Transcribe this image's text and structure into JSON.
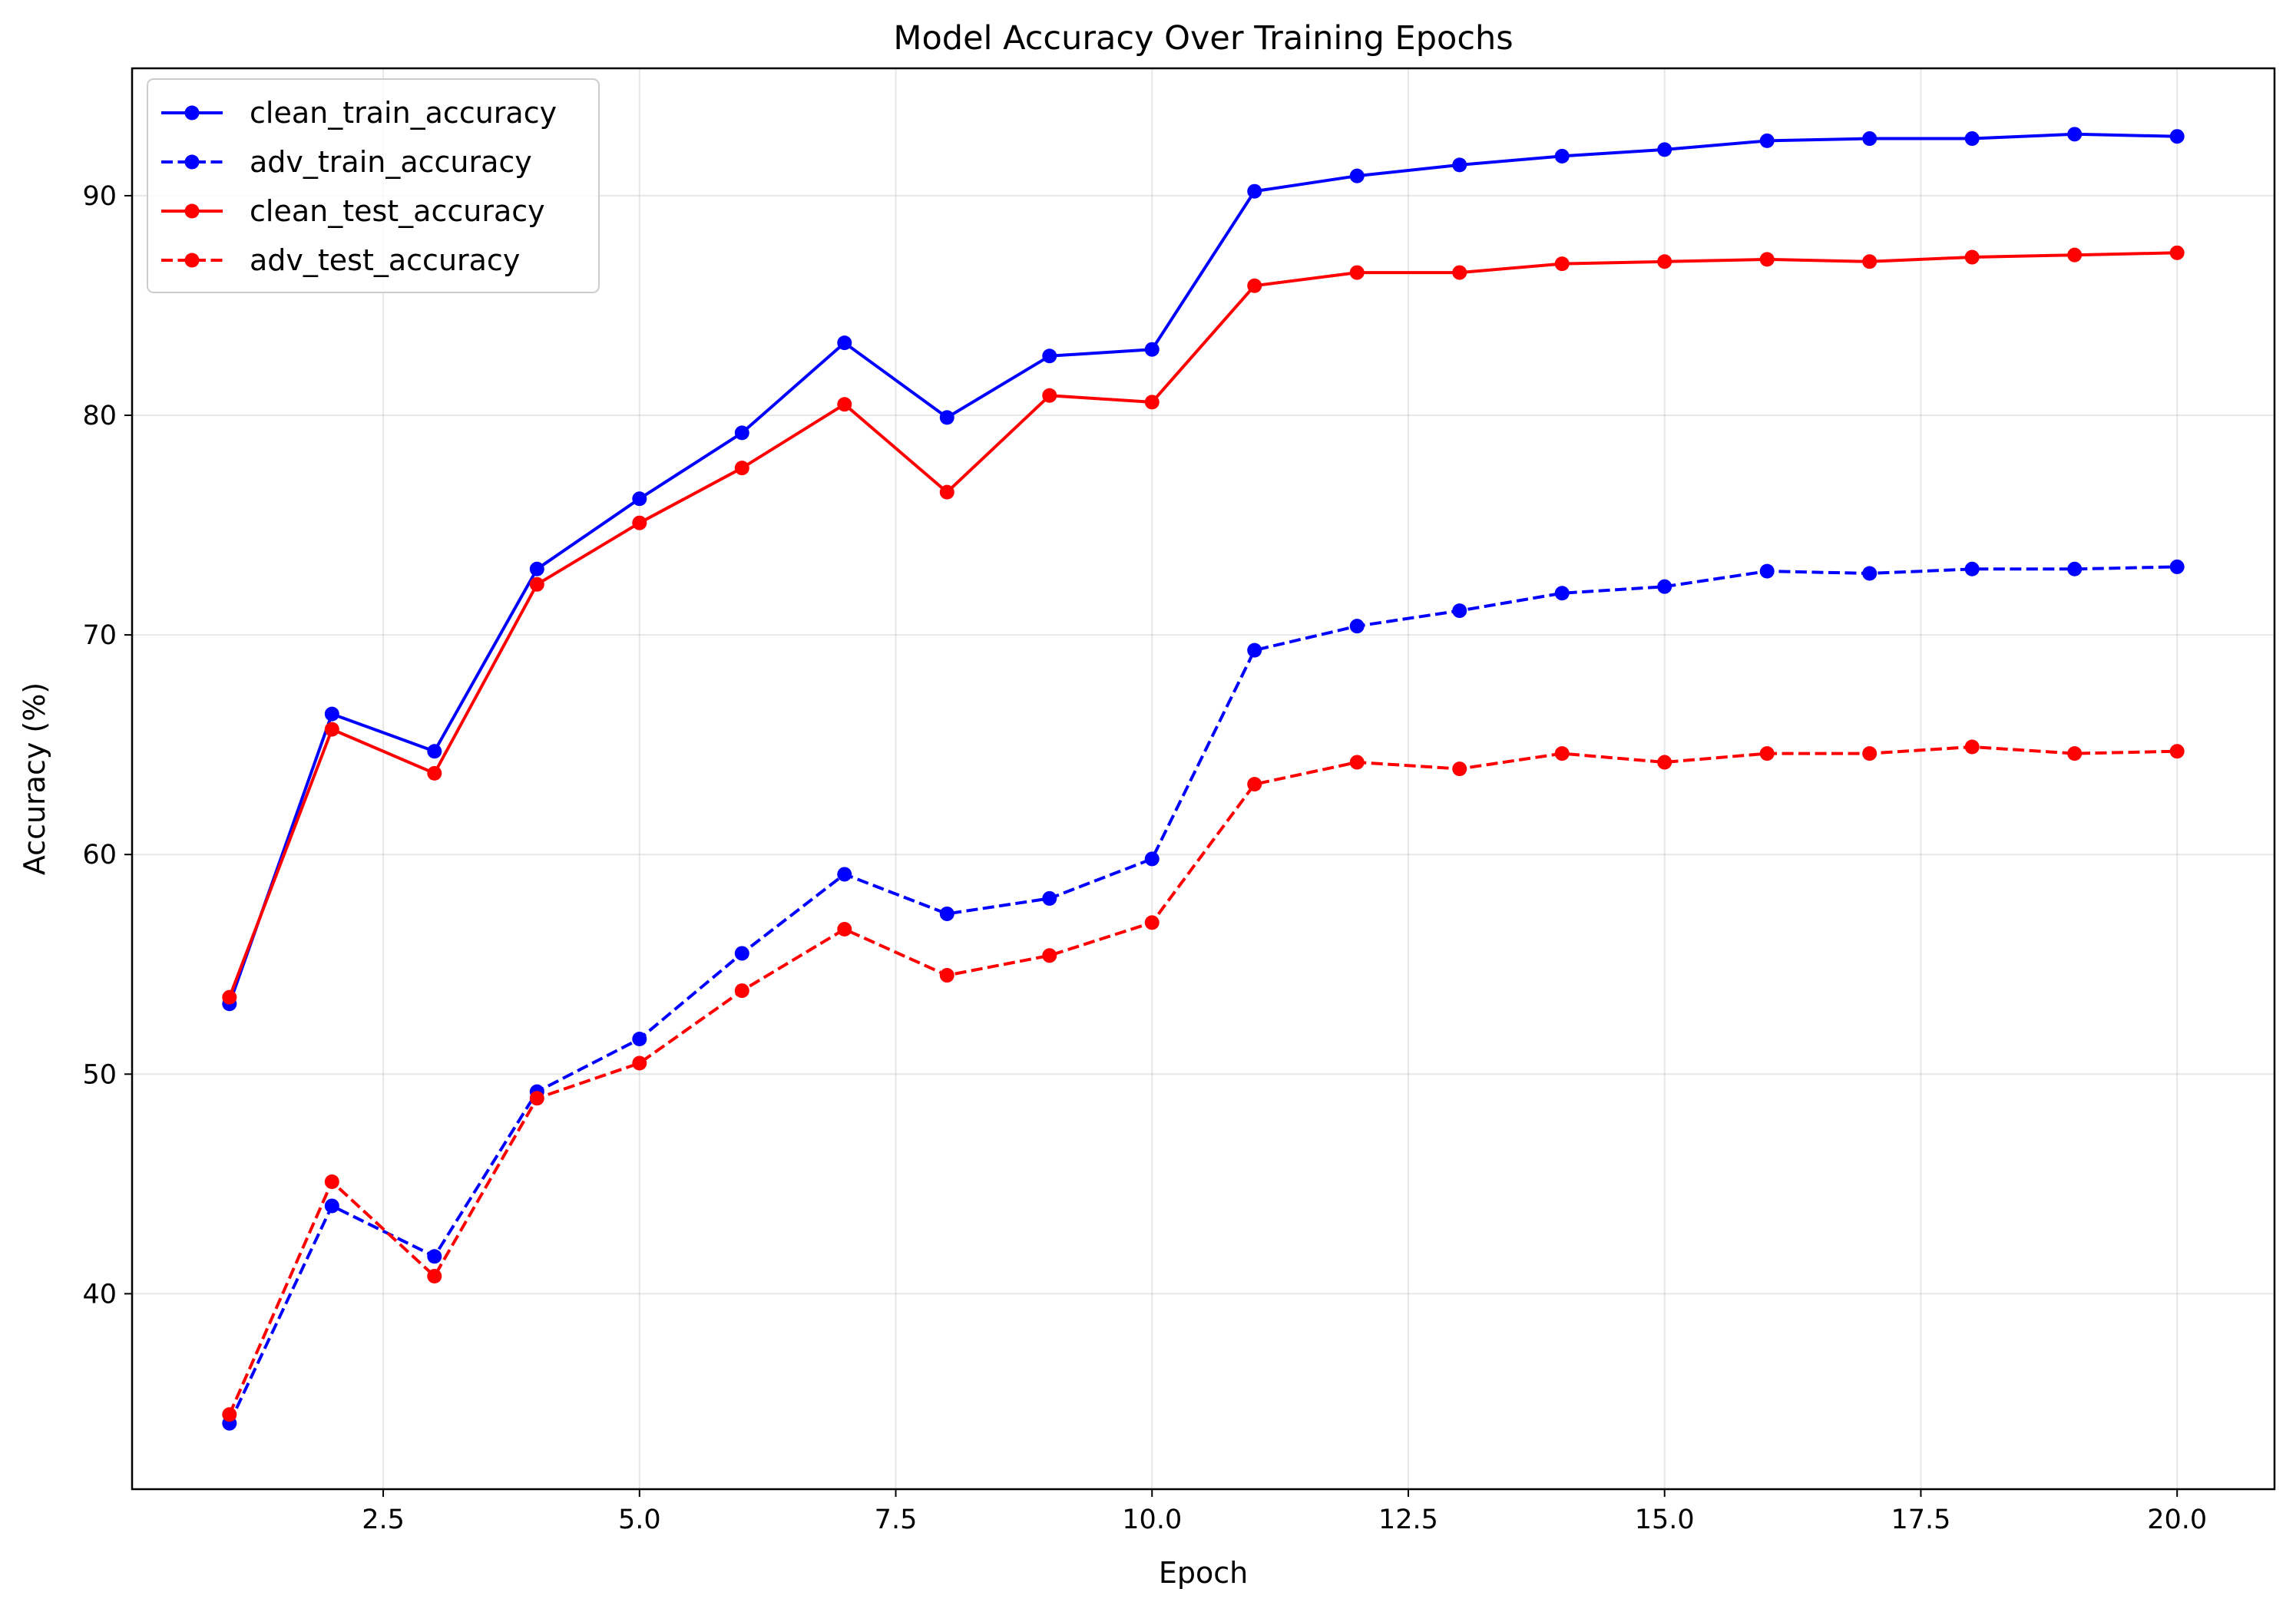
{
  "chart_data": {
    "type": "line",
    "title": "Model Accuracy Over Training Epochs",
    "xlabel": "Epoch",
    "ylabel": "Accuracy (%)",
    "xlim": [
      0.05,
      20.95
    ],
    "ylim": [
      31.1,
      95.8
    ],
    "x_ticks": [
      2.5,
      5.0,
      7.5,
      10.0,
      12.5,
      15.0,
      17.5,
      20.0
    ],
    "y_ticks": [
      40,
      50,
      60,
      70,
      80,
      90
    ],
    "grid": true,
    "legend_position": "top-left",
    "x": [
      1,
      2,
      3,
      4,
      5,
      6,
      7,
      8,
      9,
      10,
      11,
      12,
      13,
      14,
      15,
      16,
      17,
      18,
      19,
      20
    ],
    "series": [
      {
        "name": "clean_train_accuracy",
        "color": "#0000ff",
        "dash": "solid",
        "values": [
          53.2,
          66.4,
          64.7,
          73.0,
          76.2,
          79.2,
          83.3,
          79.9,
          82.7,
          83.0,
          90.2,
          90.9,
          91.4,
          91.8,
          92.1,
          92.5,
          92.6,
          92.6,
          92.8,
          92.7
        ]
      },
      {
        "name": "adv_train_accuracy",
        "color": "#0000ff",
        "dash": "dashed",
        "values": [
          34.1,
          44.0,
          41.7,
          49.2,
          51.6,
          55.5,
          59.1,
          57.3,
          58.0,
          59.8,
          69.3,
          70.4,
          71.1,
          71.9,
          72.2,
          72.9,
          72.8,
          73.0,
          73.0,
          73.1
        ]
      },
      {
        "name": "clean_test_accuracy",
        "color": "#ff0000",
        "dash": "solid",
        "values": [
          53.5,
          65.7,
          63.7,
          72.3,
          75.1,
          77.6,
          80.5,
          76.5,
          80.9,
          80.6,
          85.9,
          86.5,
          86.5,
          86.9,
          87.0,
          87.1,
          87.0,
          87.2,
          87.3,
          87.4
        ]
      },
      {
        "name": "adv_test_accuracy",
        "color": "#ff0000",
        "dash": "dashed",
        "values": [
          34.5,
          45.1,
          40.8,
          48.9,
          50.5,
          53.8,
          56.6,
          54.5,
          55.4,
          56.9,
          63.2,
          64.2,
          63.9,
          64.6,
          64.2,
          64.6,
          64.6,
          64.9,
          64.6,
          64.7
        ]
      }
    ]
  }
}
